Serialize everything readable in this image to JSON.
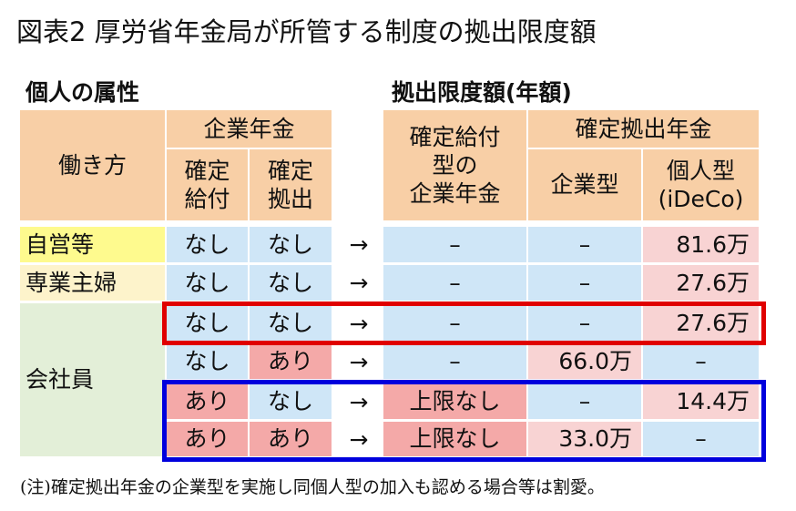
{
  "title": "図表2 厚労省年金局が所管する制度の拠出限度額",
  "header_left": "個人の属性",
  "header_right": "拠出限度額(年額)",
  "columns": {
    "work_style": "働き方",
    "corporate_pension": "企業年金",
    "db": "確定\n給付",
    "dc": "確定\n拠出",
    "db_corp": "確定給付\n型の\n企業年金",
    "dc_pension": "確定拠出年金",
    "corp_type": "企業型",
    "individual_type": "個人型\n(iDeCo)"
  },
  "arrow": "→",
  "rows": [
    {
      "label": "自営等",
      "db": "なし",
      "dc": "なし",
      "db_limit": "–",
      "corp": "–",
      "ideco": "81.6万"
    },
    {
      "label": "専業主婦",
      "db": "なし",
      "dc": "なし",
      "db_limit": "–",
      "corp": "–",
      "ideco": "27.6万"
    },
    {
      "label": "",
      "db": "なし",
      "dc": "なし",
      "db_limit": "–",
      "corp": "–",
      "ideco": "27.6万"
    },
    {
      "label": "",
      "db": "なし",
      "dc": "あり",
      "db_limit": "–",
      "corp": "66.0万",
      "ideco": "–"
    },
    {
      "label": "",
      "db": "あり",
      "dc": "なし",
      "db_limit": "上限なし",
      "corp": "–",
      "ideco": "14.4万"
    },
    {
      "label": "",
      "db": "あり",
      "dc": "あり",
      "db_limit": "上限なし",
      "corp": "33.0万",
      "ideco": "–"
    }
  ],
  "employee_label": "会社員",
  "note": "(注)確定拠出年金の企業型を実施し同個人型の加入も認める場合等は割愛。",
  "colors": {
    "red_box": "#e00000",
    "blue_box": "#0000dd"
  }
}
